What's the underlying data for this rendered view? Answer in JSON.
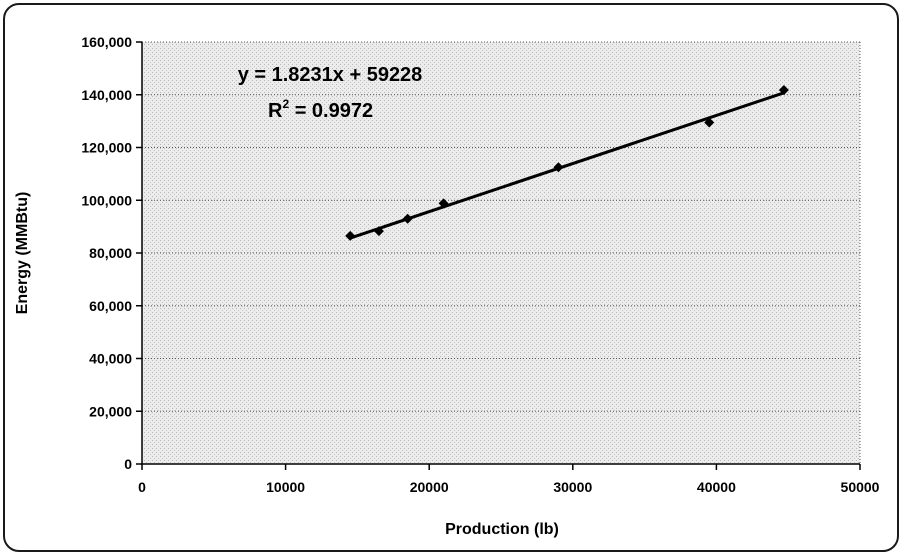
{
  "chart_data": {
    "type": "scatter",
    "title": "",
    "xlabel": "Production (lb)",
    "ylabel": "Energy (MMBtu)",
    "xlim": [
      0,
      50000
    ],
    "ylim": [
      0,
      160000
    ],
    "x_ticks": [
      0,
      10000,
      20000,
      30000,
      40000,
      50000
    ],
    "x_tick_labels": [
      "0",
      "10000",
      "20000",
      "30000",
      "40000",
      "50000"
    ],
    "y_ticks": [
      0,
      20000,
      40000,
      60000,
      80000,
      100000,
      120000,
      140000,
      160000
    ],
    "y_tick_labels": [
      "0",
      "20,000",
      "40,000",
      "60,000",
      "80,000",
      "100,000",
      "120,000",
      "140,000",
      "160,000"
    ],
    "grid": "horizontal-dotted",
    "points": [
      {
        "x": 14500,
        "y": 86500
      },
      {
        "x": 16500,
        "y": 88300
      },
      {
        "x": 18500,
        "y": 93000
      },
      {
        "x": 21000,
        "y": 98800
      },
      {
        "x": 29000,
        "y": 112500
      },
      {
        "x": 39500,
        "y": 129500
      },
      {
        "x": 44700,
        "y": 141800
      }
    ],
    "trendline": {
      "slope": 1.8231,
      "intercept": 59228,
      "x_start": 14500,
      "x_end": 44700
    },
    "annotation": {
      "equation": "y = 1.8231x + 59228",
      "r_squared_prefix": "R",
      "r_squared_sup": "2",
      "r_squared_value": " = 0.9972"
    },
    "colors": {
      "marker": "#000000",
      "line": "#000000",
      "plot_background": "#d8d8d8",
      "grid": "#555555"
    }
  }
}
